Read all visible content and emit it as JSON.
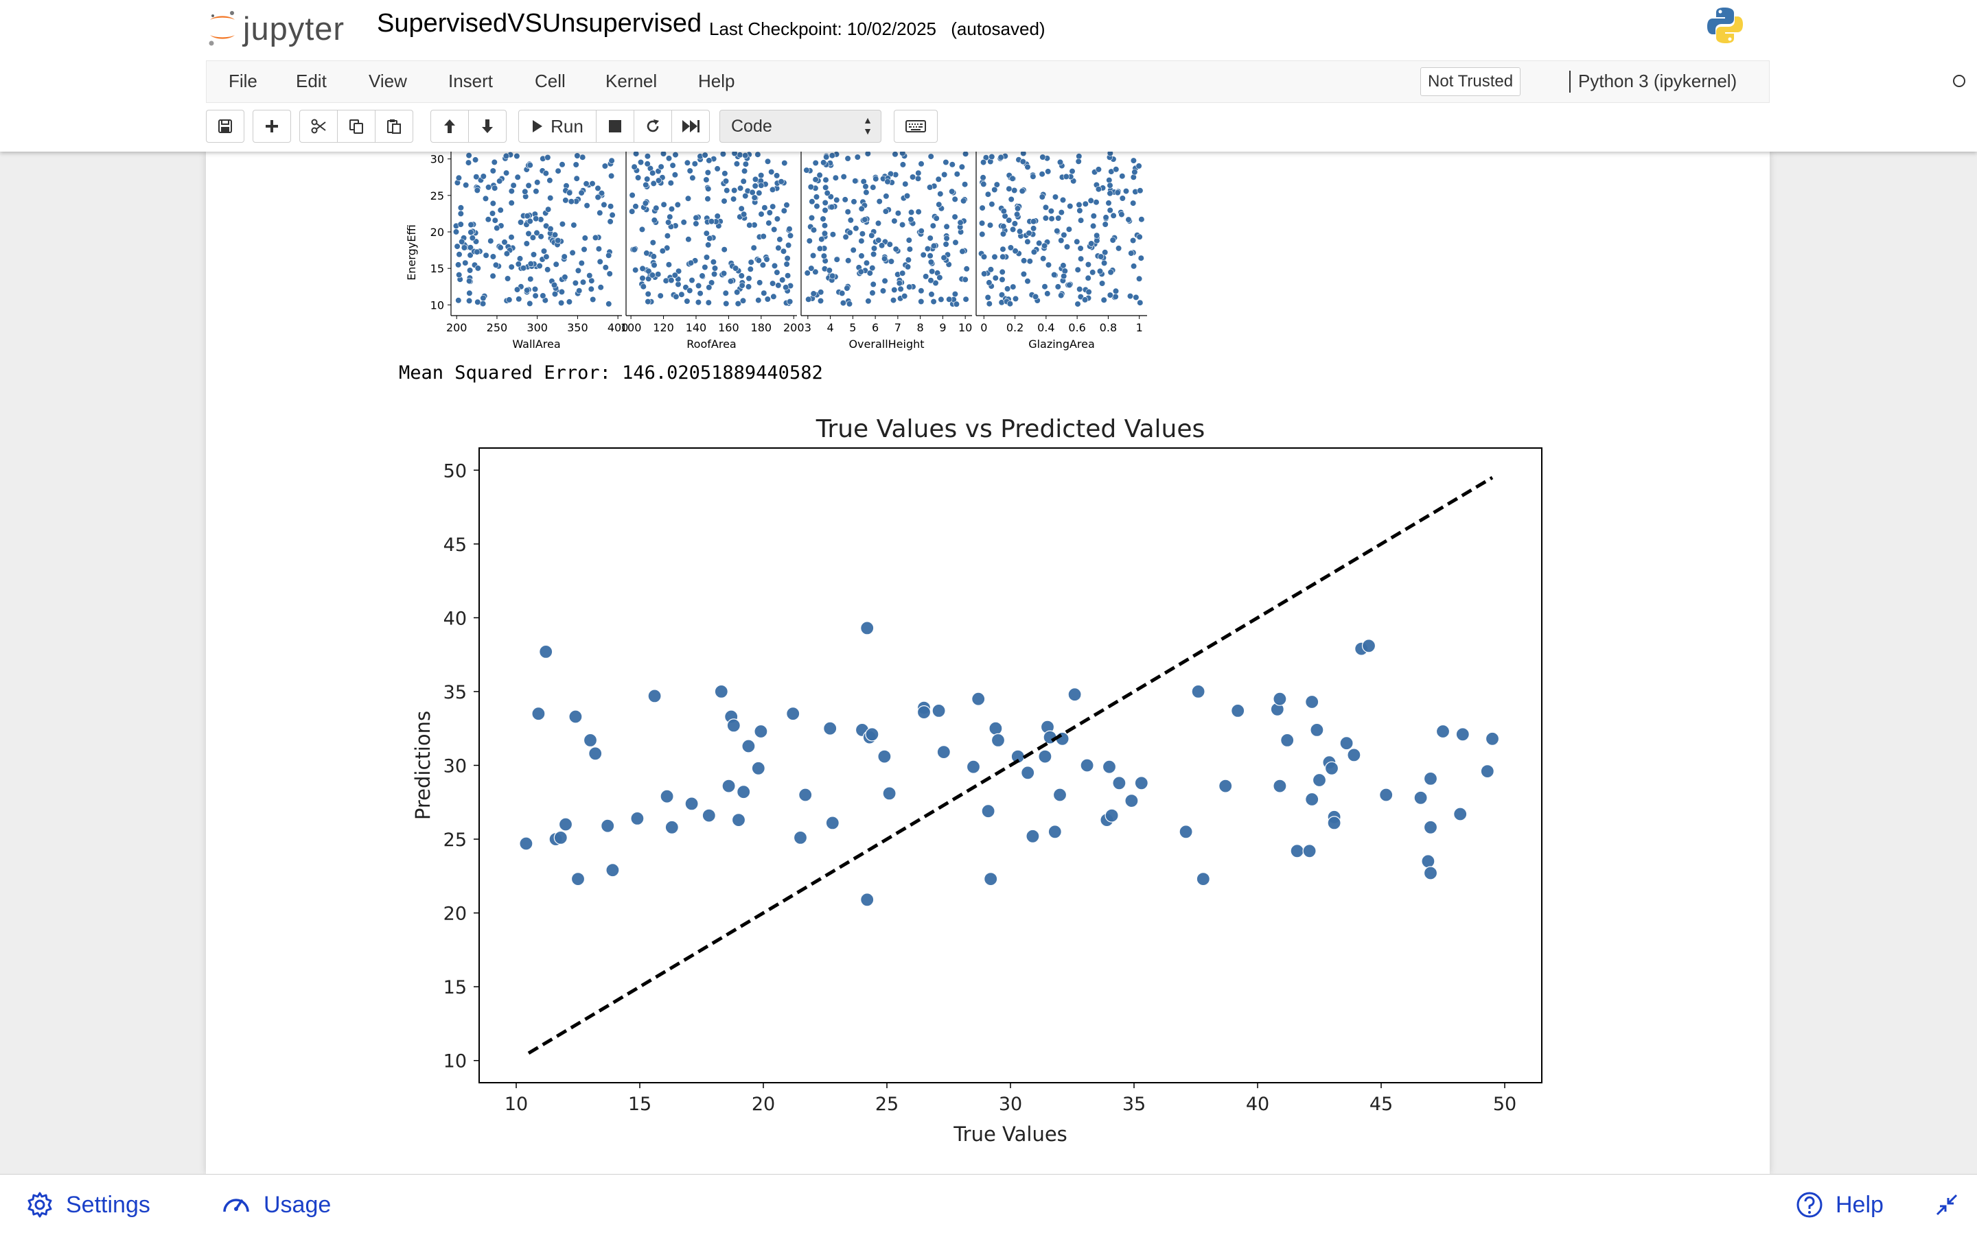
{
  "header": {
    "logo_text": "jupyter",
    "notebook_name": "SupervisedVSUnsupervised",
    "checkpoint_text": "Last Checkpoint: 10/02/2025",
    "autosave_text": "(autosaved)",
    "kernel_logo_icon": "python-logo-icon"
  },
  "menubar": {
    "items": [
      "File",
      "Edit",
      "View",
      "Insert",
      "Cell",
      "Kernel",
      "Help"
    ],
    "trust_status": "Not Trusted",
    "kernel_name": "Python 3 (ipykernel)"
  },
  "toolbar": {
    "icons": [
      "save-icon",
      "plus-icon",
      "cut-icon",
      "copy-icon",
      "paste-icon",
      "arrow-up-icon",
      "arrow-down-icon",
      "run-icon",
      "stop-icon",
      "restart-icon",
      "fast-forward-icon",
      "keyboard-icon"
    ],
    "run_label": "Run",
    "cell_type": "Code"
  },
  "output": {
    "mse_text": "Mean Squared Error: 146.02051889440582"
  },
  "bottombar": {
    "settings_label": "Settings",
    "usage_label": "Usage",
    "help_label": "Help"
  },
  "colors": {
    "point": "#3a6ea5",
    "link_blue": "#1a40c8",
    "orange": "#f37726"
  },
  "chart_data": [
    {
      "type": "scatter",
      "ylabel": "EnergyEffi",
      "xlabel": "WallArea",
      "xticks": [
        200,
        250,
        300,
        350,
        400
      ],
      "yticks": [
        10,
        15,
        20,
        25,
        30
      ],
      "xlim": [
        193,
        405
      ],
      "ylim": [
        9,
        31
      ],
      "point_count": 260,
      "note_visible": "cropped at top"
    },
    {
      "type": "scatter",
      "xlabel": "RoofArea",
      "xticks": [
        100,
        120,
        140,
        160,
        180,
        200
      ],
      "xlim": [
        97,
        202
      ],
      "ylim": [
        9,
        31
      ],
      "point_count": 260
    },
    {
      "type": "scatter",
      "xlabel": "OverallHeight",
      "xticks": [
        3,
        4,
        5,
        6,
        7,
        8,
        9,
        10
      ],
      "xlim": [
        2.7,
        10.3
      ],
      "ylim": [
        9,
        31
      ],
      "point_count": 260
    },
    {
      "type": "scatter",
      "xlabel": "GlazingArea",
      "xticks": [
        0.0,
        0.2,
        0.4,
        0.6,
        0.8,
        1.0
      ],
      "xlim": [
        -0.05,
        1.05
      ],
      "ylim": [
        9,
        31
      ],
      "point_count": 260
    },
    {
      "type": "scatter",
      "title": "True Values vs Predicted Values",
      "xlabel": "True Values",
      "ylabel": "Predictions",
      "xlim": [
        8.5,
        51.5
      ],
      "ylim": [
        8.5,
        51.5
      ],
      "xticks": [
        10,
        15,
        20,
        25,
        30,
        35,
        40,
        45,
        50
      ],
      "yticks": [
        10,
        15,
        20,
        25,
        30,
        35,
        40,
        45,
        50
      ],
      "reference_line": {
        "from": [
          10.5,
          10.5
        ],
        "to": [
          49.5,
          49.5
        ],
        "style": "dashed",
        "color": "#000000"
      },
      "points": [
        [
          10.4,
          24.7
        ],
        [
          10.9,
          33.5
        ],
        [
          11.2,
          37.7
        ],
        [
          11.6,
          25.0
        ],
        [
          11.8,
          25.1
        ],
        [
          12.0,
          26.0
        ],
        [
          12.4,
          33.3
        ],
        [
          12.5,
          22.3
        ],
        [
          13.0,
          31.7
        ],
        [
          13.2,
          30.8
        ],
        [
          13.7,
          25.9
        ],
        [
          13.9,
          22.9
        ],
        [
          14.9,
          26.4
        ],
        [
          15.6,
          34.7
        ],
        [
          16.1,
          27.9
        ],
        [
          16.3,
          25.8
        ],
        [
          17.1,
          27.4
        ],
        [
          17.8,
          26.6
        ],
        [
          18.3,
          35.0
        ],
        [
          18.6,
          28.6
        ],
        [
          18.7,
          33.3
        ],
        [
          18.8,
          32.7
        ],
        [
          19.0,
          26.3
        ],
        [
          19.2,
          28.2
        ],
        [
          19.4,
          31.3
        ],
        [
          19.8,
          29.8
        ],
        [
          19.9,
          32.3
        ],
        [
          21.2,
          33.5
        ],
        [
          21.5,
          25.1
        ],
        [
          21.7,
          28.0
        ],
        [
          22.7,
          32.5
        ],
        [
          22.8,
          26.1
        ],
        [
          24.0,
          32.4
        ],
        [
          24.2,
          39.3
        ],
        [
          24.3,
          31.9
        ],
        [
          24.4,
          32.1
        ],
        [
          24.2,
          20.9
        ],
        [
          24.9,
          30.6
        ],
        [
          25.1,
          28.1
        ],
        [
          26.5,
          33.9
        ],
        [
          26.5,
          33.6
        ],
        [
          27.1,
          33.7
        ],
        [
          27.3,
          30.9
        ],
        [
          28.5,
          29.9
        ],
        [
          28.7,
          34.5
        ],
        [
          29.1,
          26.9
        ],
        [
          29.2,
          22.3
        ],
        [
          29.4,
          32.5
        ],
        [
          29.5,
          31.7
        ],
        [
          30.3,
          30.6
        ],
        [
          30.7,
          29.5
        ],
        [
          30.9,
          25.2
        ],
        [
          31.4,
          30.6
        ],
        [
          31.5,
          32.6
        ],
        [
          31.6,
          31.9
        ],
        [
          31.8,
          25.5
        ],
        [
          32.0,
          28.0
        ],
        [
          32.1,
          31.8
        ],
        [
          32.6,
          34.8
        ],
        [
          33.1,
          30.0
        ],
        [
          33.9,
          26.3
        ],
        [
          34.0,
          29.9
        ],
        [
          34.1,
          26.6
        ],
        [
          34.4,
          28.8
        ],
        [
          34.9,
          27.6
        ],
        [
          35.3,
          28.8
        ],
        [
          37.1,
          25.5
        ],
        [
          37.6,
          35.0
        ],
        [
          37.8,
          22.3
        ],
        [
          38.7,
          28.6
        ],
        [
          39.2,
          33.7
        ],
        [
          40.8,
          33.8
        ],
        [
          40.9,
          34.5
        ],
        [
          40.9,
          28.6
        ],
        [
          41.2,
          31.7
        ],
        [
          41.6,
          24.2
        ],
        [
          42.1,
          24.2
        ],
        [
          42.2,
          27.7
        ],
        [
          42.2,
          34.3
        ],
        [
          42.4,
          32.4
        ],
        [
          42.5,
          29.0
        ],
        [
          42.9,
          30.2
        ],
        [
          43.0,
          29.8
        ],
        [
          43.1,
          26.5
        ],
        [
          43.1,
          26.1
        ],
        [
          43.6,
          31.5
        ],
        [
          43.9,
          30.7
        ],
        [
          44.2,
          37.9
        ],
        [
          44.5,
          38.1
        ],
        [
          45.2,
          28.0
        ],
        [
          46.6,
          27.8
        ],
        [
          46.9,
          23.5
        ],
        [
          47.0,
          22.7
        ],
        [
          47.0,
          29.1
        ],
        [
          47.0,
          25.8
        ],
        [
          47.5,
          32.3
        ],
        [
          48.2,
          26.7
        ],
        [
          48.3,
          32.1
        ],
        [
          49.3,
          29.6
        ],
        [
          49.5,
          31.8
        ]
      ]
    }
  ]
}
